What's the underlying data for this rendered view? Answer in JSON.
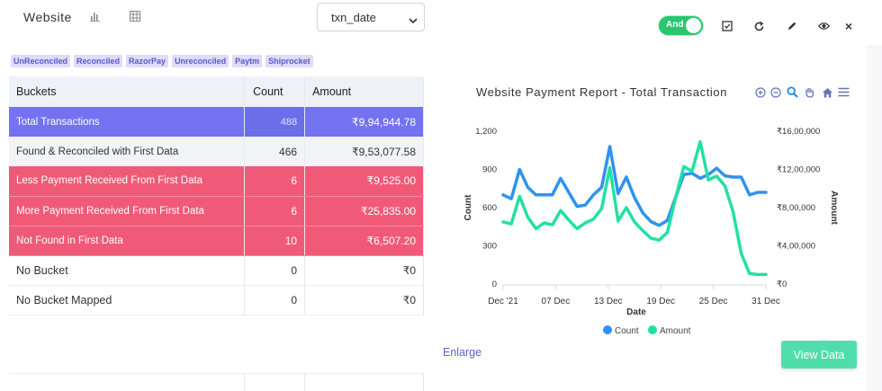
{
  "header": {
    "title": "Website",
    "select_value": "txn_date",
    "toggle_label": "And",
    "close_label": "×"
  },
  "chips": [
    "UnReconciled",
    "Reconciled",
    "RazorPay",
    "Unreconciled",
    "Paytm",
    "Shiprocket"
  ],
  "table": {
    "headers": [
      "Buckets",
      "Count",
      "Amount"
    ],
    "rows": [
      {
        "label": "Total Transactions",
        "count": "488",
        "amount": "₹9,94,944.78"
      },
      {
        "label": "Found & Reconciled with First Data",
        "count": "466",
        "amount": "₹9,53,077.58"
      },
      {
        "label": "Less Payment Received From First Data",
        "count": "6",
        "amount": "₹9,525.00"
      },
      {
        "label": "More Payment Received From First Data",
        "count": "6",
        "amount": "₹25,835.00"
      },
      {
        "label": "Not Found in First Data",
        "count": "10",
        "amount": "₹6,507.20"
      },
      {
        "label": "No Bucket",
        "count": "0",
        "amount": "₹0"
      },
      {
        "label": "No Bucket Mapped",
        "count": "0",
        "amount": "₹0"
      }
    ]
  },
  "chart_title": "Website Payment Report - Total Transaction",
  "chart_data": {
    "type": "line",
    "title": "Website Payment Report - Total Transaction",
    "xlabel": "Date",
    "ylabel": "Count",
    "y2label": "Amount",
    "x_ticks": [
      "Dec '21",
      "07 Dec",
      "13 Dec",
      "19 Dec",
      "25 Dec",
      "31 Dec"
    ],
    "y_ticks": [
      "0",
      "300",
      "600",
      "900",
      "1,200"
    ],
    "y2_ticks": [
      "₹0",
      "₹4,00,000",
      "₹8,00,000",
      "₹12,00,000",
      "₹16,00,000"
    ],
    "ylim": [
      0,
      1200
    ],
    "y2lim": [
      0,
      1600000
    ],
    "x_days": [
      1,
      2,
      3,
      4,
      5,
      6,
      7,
      8,
      9,
      10,
      11,
      12,
      13,
      14,
      15,
      16,
      17,
      18,
      19,
      20,
      21,
      22,
      23,
      24,
      25,
      26,
      27,
      28,
      29,
      30,
      31,
      32,
      33
    ],
    "series": [
      {
        "name": "Count",
        "color": "#2e93ee",
        "axis": "left",
        "values": [
          700,
          670,
          900,
          760,
          700,
          700,
          700,
          830,
          720,
          610,
          620,
          700,
          760,
          1080,
          710,
          840,
          680,
          560,
          490,
          460,
          500,
          680,
          860,
          870,
          830,
          860,
          910,
          850,
          840,
          840,
          700,
          720,
          720
        ]
      },
      {
        "name": "Amount",
        "color": "#22e0a4",
        "axis": "right",
        "values": [
          650000,
          630000,
          920000,
          700000,
          580000,
          640000,
          620000,
          770000,
          670000,
          580000,
          640000,
          680000,
          790000,
          1220000,
          660000,
          800000,
          650000,
          560000,
          480000,
          460000,
          540000,
          900000,
          1230000,
          1180000,
          1490000,
          1090000,
          1130000,
          1030000,
          760000,
          320000,
          110000,
          100000,
          100000
        ]
      }
    ],
    "legend": "bottom",
    "grid": false
  },
  "footer": {
    "enlarge": "Enlarge",
    "view_data": "View Data"
  },
  "colors": {
    "accent": "#7372f0",
    "danger_row": "#f05a78",
    "toggle": "#28c76f",
    "view_data": "#4fdeab"
  }
}
